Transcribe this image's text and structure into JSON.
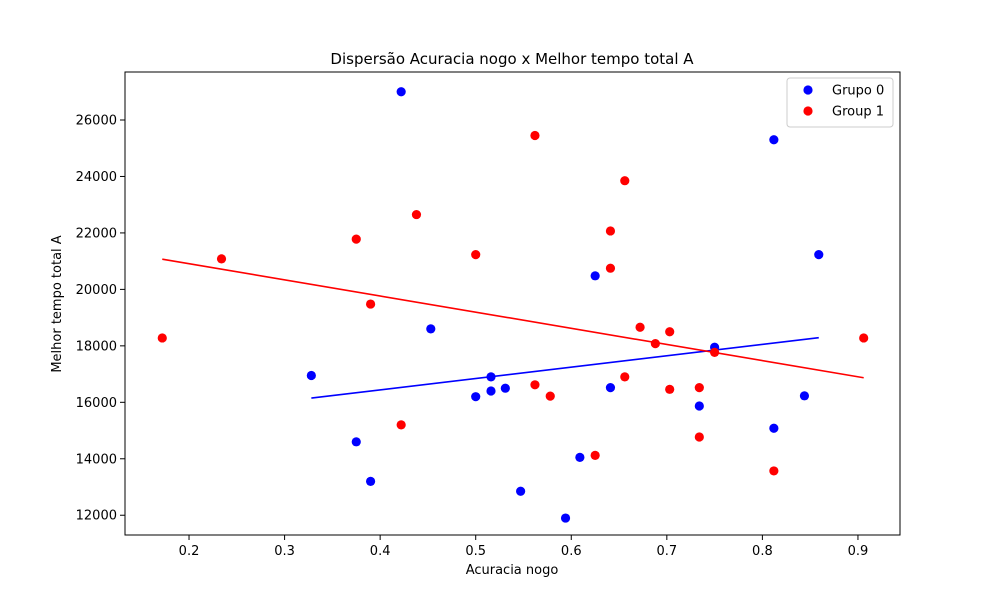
{
  "chart_data": {
    "type": "scatter",
    "title": "Dispersão Acuracia nogo x Melhor tempo total A",
    "xlabel": "Acuracia nogo",
    "ylabel": "Melhor tempo total A",
    "xlim": [
      0.133,
      0.944
    ],
    "ylim": [
      11300,
      27700
    ],
    "xticks": [
      0.2,
      0.3,
      0.4,
      0.5,
      0.6,
      0.7,
      0.8,
      0.9
    ],
    "xtick_labels": [
      "0.2",
      "0.3",
      "0.4",
      "0.5",
      "0.6",
      "0.7",
      "0.8",
      "0.9"
    ],
    "yticks": [
      12000,
      14000,
      16000,
      18000,
      20000,
      22000,
      24000,
      26000
    ],
    "ytick_labels": [
      "12000",
      "14000",
      "16000",
      "18000",
      "20000",
      "22000",
      "24000",
      "26000"
    ],
    "grid": false,
    "legend_position": "top-right",
    "series": [
      {
        "name": "Grupo 0",
        "color": "#0000ff",
        "points": [
          [
            0.328,
            16950
          ],
          [
            0.375,
            14600
          ],
          [
            0.39,
            13200
          ],
          [
            0.422,
            27000
          ],
          [
            0.453,
            18600
          ],
          [
            0.5,
            16200
          ],
          [
            0.516,
            16400
          ],
          [
            0.516,
            16900
          ],
          [
            0.531,
            16500
          ],
          [
            0.547,
            12850
          ],
          [
            0.594,
            11900
          ],
          [
            0.609,
            14050
          ],
          [
            0.625,
            20480
          ],
          [
            0.641,
            16520
          ],
          [
            0.734,
            15870
          ],
          [
            0.75,
            17950
          ],
          [
            0.812,
            25300
          ],
          [
            0.812,
            15080
          ],
          [
            0.844,
            16230
          ],
          [
            0.859,
            21230
          ]
        ],
        "trend": {
          "x": [
            0.328,
            0.859
          ],
          "y": [
            16150,
            18290
          ]
        }
      },
      {
        "name": "Group 1",
        "color": "#ff0000",
        "points": [
          [
            0.172,
            18280
          ],
          [
            0.234,
            21080
          ],
          [
            0.375,
            21780
          ],
          [
            0.39,
            19480
          ],
          [
            0.422,
            15200
          ],
          [
            0.438,
            22650
          ],
          [
            0.5,
            21230
          ],
          [
            0.562,
            25450
          ],
          [
            0.562,
            16620
          ],
          [
            0.578,
            16220
          ],
          [
            0.625,
            14120
          ],
          [
            0.641,
            22070
          ],
          [
            0.641,
            20750
          ],
          [
            0.656,
            23850
          ],
          [
            0.656,
            16900
          ],
          [
            0.672,
            18660
          ],
          [
            0.688,
            18080
          ],
          [
            0.703,
            18500
          ],
          [
            0.703,
            16460
          ],
          [
            0.734,
            16520
          ],
          [
            0.734,
            14770
          ],
          [
            0.75,
            17770
          ],
          [
            0.812,
            13570
          ],
          [
            0.906,
            18280
          ]
        ],
        "trend": {
          "x": [
            0.172,
            0.906
          ],
          "y": [
            21070,
            16870
          ]
        }
      }
    ]
  }
}
